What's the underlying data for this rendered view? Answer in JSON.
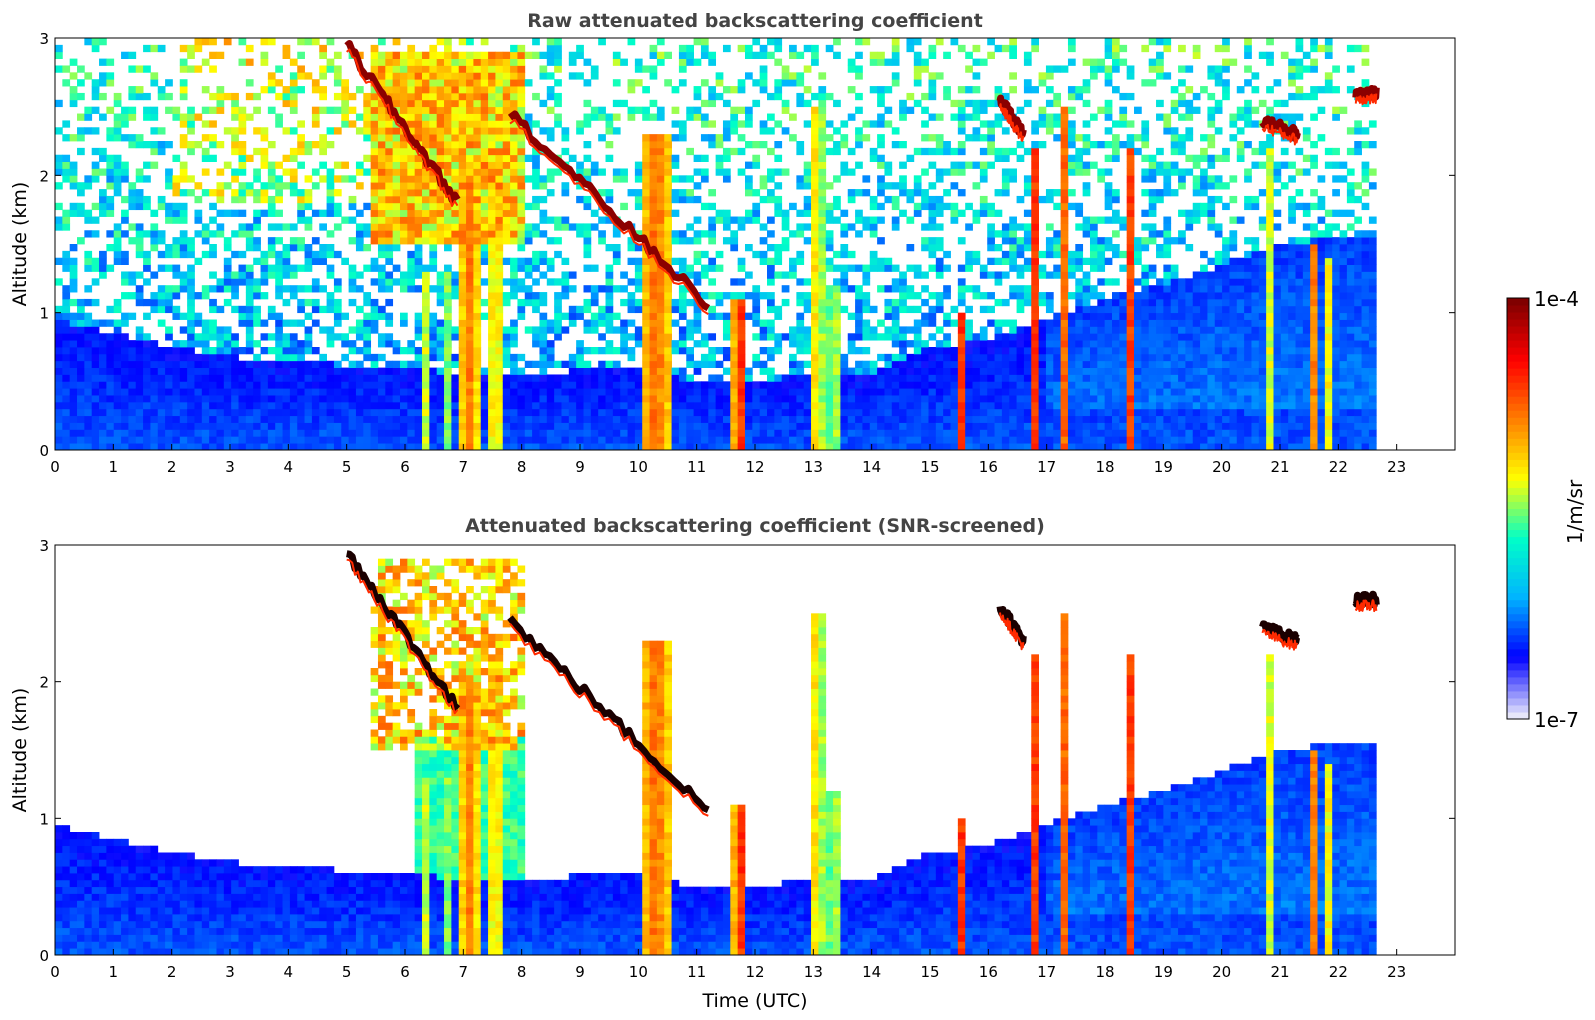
{
  "chart_data": [
    {
      "type": "heatmap",
      "title": "Raw attenuated backscattering coefficient",
      "xlabel": "",
      "ylabel": "Altitude (km)",
      "xlim": [
        0,
        24
      ],
      "ylim": [
        0,
        3
      ],
      "x_ticks": [
        "0",
        "1",
        "2",
        "3",
        "4",
        "5",
        "6",
        "7",
        "8",
        "9",
        "10",
        "11",
        "12",
        "13",
        "14",
        "15",
        "16",
        "17",
        "18",
        "19",
        "20",
        "21",
        "22",
        "23"
      ],
      "y_ticks": [
        "0",
        "1",
        "2",
        "3"
      ],
      "data_end_time": 22.65,
      "screened": false,
      "grid": false
    },
    {
      "type": "heatmap",
      "title": "Attenuated backscattering coefficient (SNR-screened)",
      "xlabel": "Time (UTC)",
      "ylabel": "Altitude (km)",
      "xlim": [
        0,
        24
      ],
      "ylim": [
        0,
        3
      ],
      "x_ticks": [
        "0",
        "1",
        "2",
        "3",
        "4",
        "5",
        "6",
        "7",
        "8",
        "9",
        "10",
        "11",
        "12",
        "13",
        "14",
        "15",
        "16",
        "17",
        "18",
        "19",
        "20",
        "21",
        "22",
        "23"
      ],
      "y_ticks": [
        "0",
        "1",
        "2",
        "3"
      ],
      "data_end_time": 22.65,
      "screened": true,
      "grid": false
    }
  ],
  "features": {
    "cloud_layers": [
      {
        "t_start": 7.8,
        "t_end": 11.2,
        "alt_start": 2.45,
        "alt_end": 1.05
      },
      {
        "t_start": 5.0,
        "t_end": 6.9,
        "alt_start": 2.95,
        "alt_end": 1.8
      },
      {
        "t_start": 16.2,
        "t_end": 16.6,
        "alt_start": 2.55,
        "alt_end": 2.3
      },
      {
        "t_start": 20.7,
        "t_end": 21.3,
        "alt_start": 2.4,
        "alt_end": 2.3
      },
      {
        "t_start": 22.3,
        "t_end": 22.65,
        "alt_start": 2.6,
        "alt_end": 2.6
      }
    ],
    "rain_shafts": [
      {
        "t": 7.1,
        "width": 0.35,
        "top": 2.0,
        "intensity": 0.75
      },
      {
        "t": 7.55,
        "width": 0.3,
        "top": 2.2,
        "intensity": 0.55
      },
      {
        "t": 10.3,
        "width": 0.55,
        "top": 2.3,
        "intensity": 0.8
      },
      {
        "t": 11.75,
        "width": 0.25,
        "top": 1.1,
        "intensity": 0.95
      },
      {
        "t": 13.05,
        "width": 0.2,
        "top": 2.5,
        "intensity": 0.55
      },
      {
        "t": 13.35,
        "width": 0.15,
        "top": 1.2,
        "intensity": 0.45
      },
      {
        "t": 15.55,
        "width": 0.08,
        "top": 1.0,
        "intensity": 1.0
      },
      {
        "t": 16.8,
        "width": 0.12,
        "top": 2.2,
        "intensity": 0.9
      },
      {
        "t": 17.3,
        "width": 0.1,
        "top": 2.5,
        "intensity": 0.8
      },
      {
        "t": 18.45,
        "width": 0.1,
        "top": 2.2,
        "intensity": 1.0
      },
      {
        "t": 20.85,
        "width": 0.1,
        "top": 2.2,
        "intensity": 0.5
      },
      {
        "t": 21.6,
        "width": 0.1,
        "top": 1.5,
        "intensity": 0.85
      },
      {
        "t": 21.85,
        "width": 0.08,
        "top": 1.4,
        "intensity": 0.55
      },
      {
        "t": 6.35,
        "width": 0.15,
        "top": 1.3,
        "intensity": 0.4
      },
      {
        "t": 6.7,
        "width": 0.1,
        "top": 1.3,
        "intensity": 0.4
      }
    ],
    "boundary_layer_top": [
      [
        0,
        0.95
      ],
      [
        1,
        0.85
      ],
      [
        2,
        0.75
      ],
      [
        3,
        0.68
      ],
      [
        4,
        0.65
      ],
      [
        5,
        0.62
      ],
      [
        6,
        0.6
      ],
      [
        7,
        0.55
      ],
      [
        8,
        0.55
      ],
      [
        9,
        0.58
      ],
      [
        10,
        0.6
      ],
      [
        11,
        0.5
      ],
      [
        12,
        0.5
      ],
      [
        13,
        0.55
      ],
      [
        14,
        0.55
      ],
      [
        15,
        0.75
      ],
      [
        16,
        0.8
      ],
      [
        17,
        0.95
      ],
      [
        18,
        1.1
      ],
      [
        19,
        1.2
      ],
      [
        20,
        1.35
      ],
      [
        21,
        1.5
      ],
      [
        22,
        1.55
      ],
      [
        22.65,
        1.55
      ]
    ]
  },
  "colorbar": {
    "label": "1/m/sr",
    "max_label": "1e-4",
    "min_label": "1e-7",
    "scale": "log",
    "colormap": "jet",
    "colors": [
      "#e6e6fa",
      "#0000ff",
      "#00b4ff",
      "#00ffc8",
      "#ffff00",
      "#ff8000",
      "#ff0000",
      "#800000"
    ]
  }
}
